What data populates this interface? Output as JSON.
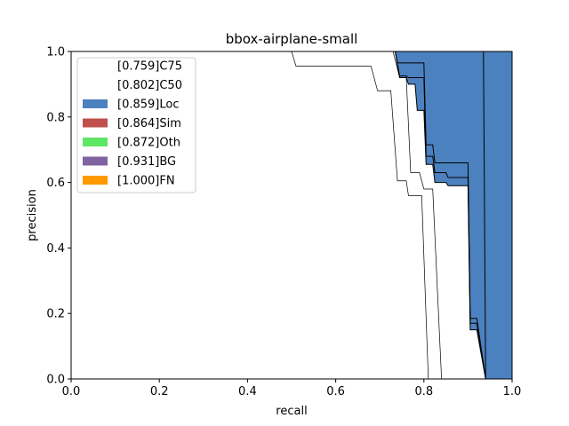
{
  "chart_data": {
    "type": "area",
    "title": "bbox-airplane-small",
    "xlabel": "recall",
    "ylabel": "precision",
    "xlim": [
      0,
      1
    ],
    "ylim": [
      0,
      1
    ],
    "xticks": [
      "0.0",
      "0.2",
      "0.4",
      "0.6",
      "0.8",
      "1.0"
    ],
    "yticks": [
      "0.0",
      "0.2",
      "0.4",
      "0.6",
      "0.8",
      "1.0"
    ],
    "grid": false,
    "legend_position": "upper-left",
    "series": [
      {
        "name": "[0.759]C75",
        "fill": false,
        "color": "#ffffff",
        "points": [
          [
            0,
            1
          ],
          [
            0.5,
            1
          ],
          [
            0.51,
            0.955
          ],
          [
            0.68,
            0.955
          ],
          [
            0.695,
            0.88
          ],
          [
            0.725,
            0.88
          ],
          [
            0.74,
            0.605
          ],
          [
            0.76,
            0.605
          ],
          [
            0.765,
            0.56
          ],
          [
            0.795,
            0.56
          ],
          [
            0.81,
            0
          ],
          [
            1,
            0
          ]
        ]
      },
      {
        "name": "[0.802]C50",
        "fill": false,
        "color": "#ffffff",
        "points": [
          [
            0,
            1
          ],
          [
            0.73,
            1
          ],
          [
            0.745,
            0.92
          ],
          [
            0.76,
            0.92
          ],
          [
            0.77,
            0.63
          ],
          [
            0.79,
            0.63
          ],
          [
            0.8,
            0.58
          ],
          [
            0.82,
            0.58
          ],
          [
            0.84,
            0
          ],
          [
            1,
            0
          ]
        ]
      },
      {
        "name": "[0.859]Loc",
        "fill": true,
        "color": "#4c81bf",
        "points": [
          [
            0,
            1
          ],
          [
            0.735,
            1
          ],
          [
            0.745,
            0.92
          ],
          [
            0.76,
            0.92
          ],
          [
            0.765,
            0.9
          ],
          [
            0.78,
            0.9
          ],
          [
            0.785,
            0.82
          ],
          [
            0.8,
            0.82
          ],
          [
            0.805,
            0.655
          ],
          [
            0.82,
            0.655
          ],
          [
            0.825,
            0.6
          ],
          [
            0.85,
            0.6
          ],
          [
            0.855,
            0.59
          ],
          [
            0.9,
            0.59
          ],
          [
            0.905,
            0.15
          ],
          [
            0.92,
            0.15
          ],
          [
            0.94,
            0
          ],
          [
            1,
            0
          ]
        ]
      },
      {
        "name": "[0.864]Sim",
        "fill": true,
        "color": "#c0504d",
        "points": [
          [
            0,
            1
          ],
          [
            0.735,
            1
          ],
          [
            0.745,
            0.925
          ],
          [
            0.76,
            0.925
          ],
          [
            0.765,
            0.92
          ],
          [
            0.8,
            0.92
          ],
          [
            0.805,
            0.68
          ],
          [
            0.82,
            0.68
          ],
          [
            0.825,
            0.63
          ],
          [
            0.85,
            0.63
          ],
          [
            0.855,
            0.615
          ],
          [
            0.9,
            0.615
          ],
          [
            0.905,
            0.17
          ],
          [
            0.92,
            0.17
          ],
          [
            0.94,
            0
          ],
          [
            1,
            0
          ]
        ]
      },
      {
        "name": "[0.872]Oth",
        "fill": true,
        "color": "#5ee665",
        "points": [
          [
            0,
            1
          ],
          [
            0.735,
            1
          ],
          [
            0.74,
            0.965
          ],
          [
            0.8,
            0.965
          ],
          [
            0.805,
            0.715
          ],
          [
            0.82,
            0.715
          ],
          [
            0.825,
            0.66
          ],
          [
            0.85,
            0.66
          ],
          [
            0.855,
            0.66
          ],
          [
            0.9,
            0.66
          ],
          [
            0.905,
            0.185
          ],
          [
            0.92,
            0.185
          ],
          [
            0.94,
            0
          ],
          [
            1,
            0
          ]
        ]
      },
      {
        "name": "[0.931]BG",
        "fill": true,
        "color": "#8064a2",
        "points": [
          [
            0,
            1
          ],
          [
            0.935,
            1
          ],
          [
            0.94,
            0
          ],
          [
            1,
            0
          ]
        ]
      },
      {
        "name": "[1.000]FN",
        "fill": true,
        "color": "#ff9900",
        "points": [
          [
            0,
            1
          ],
          [
            1,
            1
          ],
          [
            1,
            0
          ]
        ]
      }
    ]
  }
}
